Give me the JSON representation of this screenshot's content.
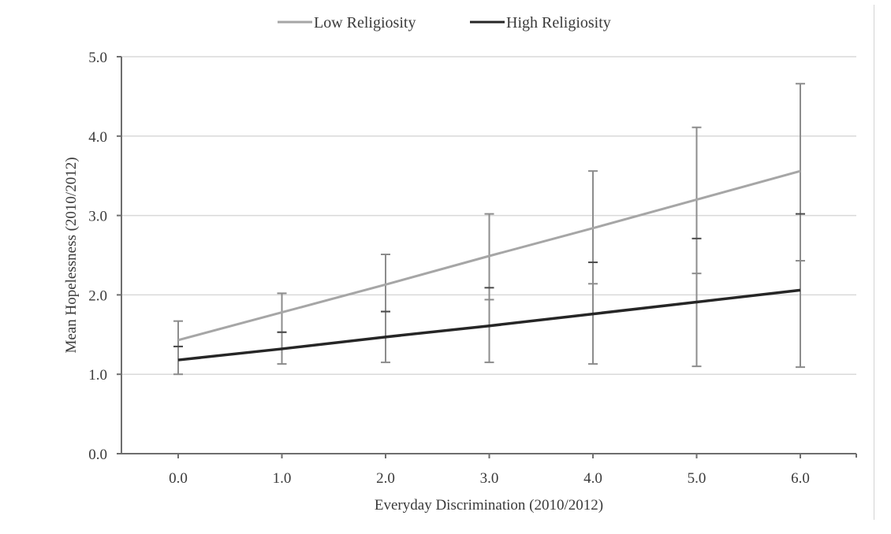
{
  "chart_data": {
    "type": "line",
    "title": "",
    "xlabel": "Everyday Discrimination (2010/2012)",
    "ylabel": "Mean Hopelessness (2010/2012)",
    "x": [
      0,
      1,
      2,
      3,
      4,
      5,
      6
    ],
    "x_tick_labels": [
      "0.0",
      "1.0",
      "2.0",
      "3.0",
      "4.0",
      "5.0",
      "6.0"
    ],
    "y_tick_labels": [
      "0.0",
      "1.0",
      "2.0",
      "3.0",
      "4.0",
      "5.0"
    ],
    "y_ticks": [
      0,
      1,
      2,
      3,
      4,
      5
    ],
    "xlim": [
      -0.55,
      6.5
    ],
    "ylim": [
      0,
      5
    ],
    "grid": "horizontal",
    "legend_position": "top-center",
    "series": [
      {
        "name": "Low Religiosity",
        "color": "#a6a6a6",
        "values": [
          1.43,
          1.78,
          2.13,
          2.49,
          2.84,
          3.2,
          3.56
        ],
        "error_upper": [
          1.67,
          2.02,
          2.51,
          3.02,
          3.56,
          4.11,
          4.66
        ],
        "error_lower": [
          1.35,
          1.53,
          1.79,
          1.94,
          2.14,
          2.27,
          2.43
        ]
      },
      {
        "name": "High Religiosity",
        "color": "#262626",
        "values": [
          1.18,
          1.32,
          1.47,
          1.61,
          1.76,
          1.91,
          2.06
        ],
        "error_upper": [
          1.35,
          1.53,
          1.79,
          2.09,
          2.41,
          2.71,
          3.02
        ],
        "error_lower": [
          1.0,
          1.13,
          1.15,
          1.15,
          1.13,
          1.1,
          1.09
        ]
      }
    ]
  }
}
